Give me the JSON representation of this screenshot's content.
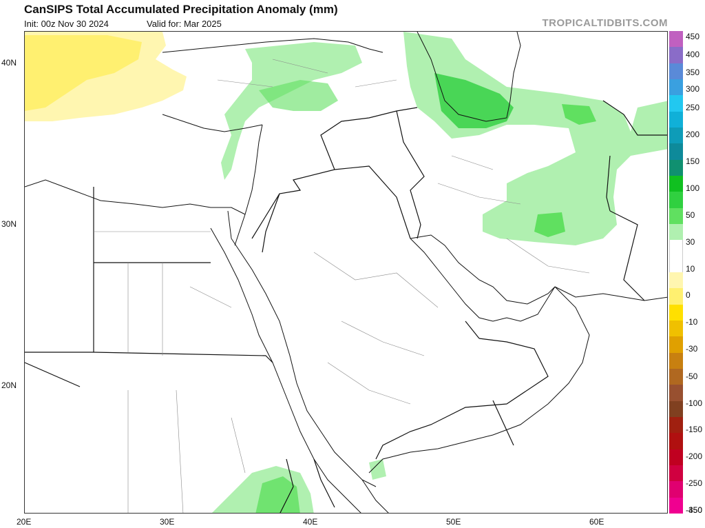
{
  "header": {
    "title": "CanSIPS Total Accumulated Precipitation Anomaly (mm)",
    "init": "Init: 00z Nov 30 2024",
    "valid": "Valid for: Mar 2025",
    "site": "TROPICALTIDBITS.COM"
  },
  "axes": {
    "lat_labels": [
      "40N",
      "30N",
      "20N"
    ],
    "lon_labels": [
      "20E",
      "30E",
      "40E",
      "50E",
      "60E"
    ]
  },
  "colorbar": {
    "labels": [
      "450",
      "400",
      "350",
      "300",
      "250",
      "200",
      "150",
      "100",
      "50",
      "30",
      "10",
      "0",
      "-10",
      "-30",
      "-50",
      "-100",
      "-150",
      "-200",
      "-250",
      "-350",
      "-450"
    ],
    "colors": [
      "#c060c0",
      "#8a6cc8",
      "#5a8ad8",
      "#3aa0e0",
      "#22c8f0",
      "#10b0d8",
      "#0e9cb8",
      "#0e8a9a",
      "#109070",
      "#10c020",
      "#30d040",
      "#60e060",
      "#b0f0b0",
      "#ffffff",
      "#ffffff",
      "#fff6b0",
      "#fff070",
      "#ffe000",
      "#f0c000",
      "#e0a000",
      "#c88010",
      "#b06820",
      "#985030",
      "#804020",
      "#a02010",
      "#b01010",
      "#c00020",
      "#d00040",
      "#e00070",
      "#f00090"
    ]
  },
  "map": {
    "anomaly_areas": [
      {
        "label": "Balkans / Aegean dry anomaly",
        "category": "-10"
      },
      {
        "label": "Caspian / northern Iran wet anomaly",
        "category": "30"
      },
      {
        "label": "Central Iran / Afghanistan wet anomaly",
        "category": "10"
      },
      {
        "label": "Ethiopian highlands wet anomaly",
        "category": "10"
      }
    ]
  }
}
